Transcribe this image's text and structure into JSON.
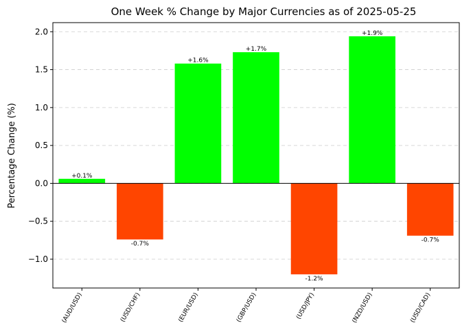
{
  "chart_data": {
    "type": "bar",
    "title": "One Week % Change by Major Currencies as of 2025-05-25",
    "xlabel": "",
    "ylabel": "Percentage Change (%)",
    "categories": [
      "(AUD/USD)",
      "(USD/CHF)",
      "(EUR/USD)",
      "(GBP/USD)",
      "(USD/JPY)",
      "(NZD/USD)",
      "(USD/CAD)"
    ],
    "values": [
      0.06,
      -0.74,
      1.58,
      1.73,
      -1.2,
      1.94,
      -0.69
    ],
    "data_labels": [
      "+0.1%",
      "-0.7%",
      "+1.6%",
      "+1.7%",
      "-1.2%",
      "+1.9%",
      "-0.7%"
    ],
    "ylim": [
      -1.38,
      2.12
    ],
    "yticks": [
      -1.0,
      -0.5,
      0.0,
      0.5,
      1.0,
      1.5,
      2.0
    ],
    "ytick_labels": [
      "−1.0",
      "−0.5",
      "0.0",
      "0.5",
      "1.0",
      "1.5",
      "2.0"
    ],
    "grid": true,
    "colors": {
      "positive": "#00ff00",
      "negative": "#ff4500"
    }
  }
}
